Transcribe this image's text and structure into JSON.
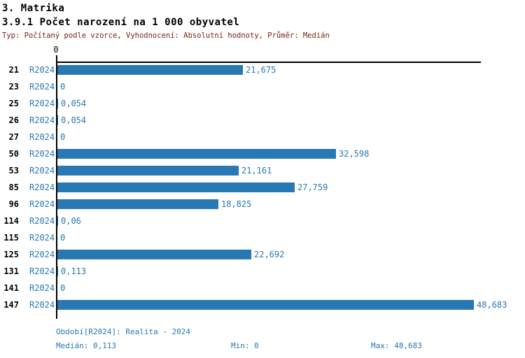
{
  "header": {
    "title": "3. Matrika",
    "subtitle": "3.9.1 Počet narození na 1 000 obyvatel",
    "meta": "Typ: Počítaný podle vzorce, Vyhodnocení: Absolutní hodnoty, Průměr: Medián"
  },
  "colors": {
    "bar": "#2878b4",
    "blue_text": "#2878b4",
    "meta_text": "#7b2015",
    "axis": "#000000"
  },
  "chart_data": {
    "type": "bar",
    "orientation": "horizontal",
    "title": "3.9.1 Počet narození na 1 000 obyvatel",
    "period_label": "R2024",
    "categories": [
      "21",
      "23",
      "25",
      "26",
      "27",
      "50",
      "53",
      "85",
      "96",
      "114",
      "115",
      "125",
      "131",
      "141",
      "147"
    ],
    "series": [
      {
        "name": "R2024",
        "values": [
          21.675,
          0,
          0.054,
          0.054,
          0,
          32.598,
          21.161,
          27.759,
          18.825,
          0.06,
          0,
          22.692,
          0.113,
          0,
          48.683
        ],
        "value_labels": [
          "21,675",
          "0",
          "0,054",
          "0,054",
          "0",
          "32,598",
          "21,161",
          "27,759",
          "18,825",
          "0,06",
          "0",
          "22,692",
          "0,113",
          "0",
          "48,683"
        ]
      }
    ],
    "x_axis": {
      "min": 0,
      "max": 48.683,
      "tick_labels": [
        "0"
      ]
    },
    "grid": false,
    "legend": false
  },
  "axis": {
    "zero_label": "0"
  },
  "footer": {
    "period": "Období[R2024]: Realita - 2024",
    "median": "Medián: 0,113",
    "min": "Min: 0",
    "max": "Max: 48,683"
  }
}
